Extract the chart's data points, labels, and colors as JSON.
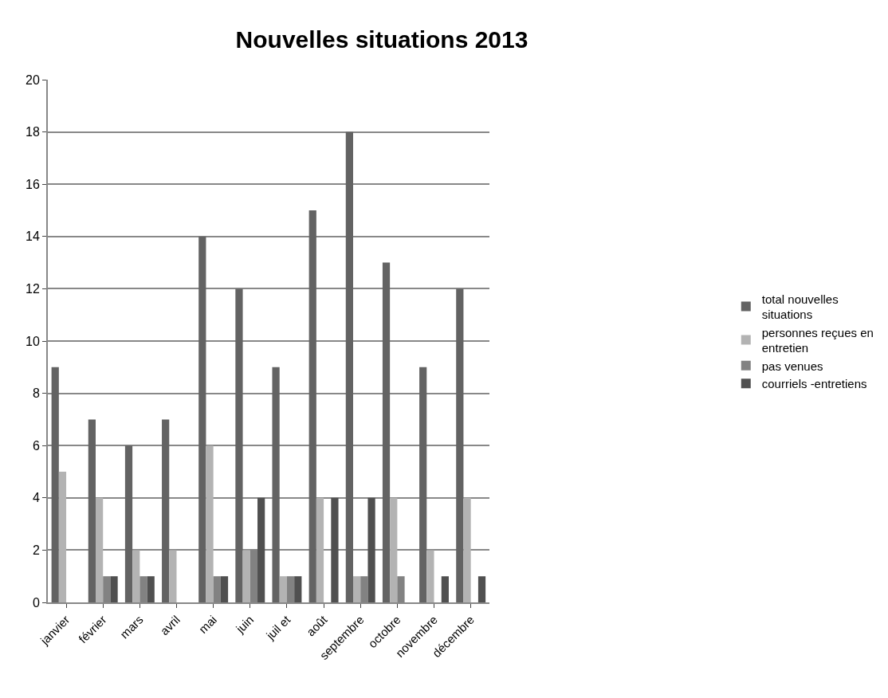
{
  "chart_data": {
    "type": "bar",
    "title": "Nouvelles situations 2013",
    "categories": [
      "janvier",
      "février",
      "mars",
      "avril",
      "mai",
      "juin",
      "juil et",
      "août",
      "septembre",
      "octobre",
      "novembre",
      "décembre"
    ],
    "series": [
      {
        "name": "total nouvelles situations",
        "color": "#636363",
        "values": [
          9,
          7,
          6,
          7,
          14,
          12,
          9,
          15,
          18,
          13,
          9,
          12
        ]
      },
      {
        "name": "personnes reçues en entretien",
        "color": "#b3b3b3",
        "values": [
          5,
          4,
          2,
          2,
          6,
          2,
          1,
          4,
          1,
          4,
          2,
          4
        ]
      },
      {
        "name": "pas venues",
        "color": "#828282",
        "values": [
          0,
          1,
          1,
          0,
          1,
          2,
          1,
          0,
          1,
          1,
          0,
          0
        ]
      },
      {
        "name": "courriels -entretiens",
        "color": "#505050",
        "values": [
          0,
          1,
          1,
          0,
          1,
          4,
          1,
          4,
          4,
          0,
          1,
          1
        ]
      }
    ],
    "ylim": [
      0,
      20
    ],
    "yticks": [
      0,
      2,
      4,
      6,
      8,
      10,
      12,
      14,
      16,
      18,
      20
    ],
    "grid": "y",
    "legend": "right"
  }
}
